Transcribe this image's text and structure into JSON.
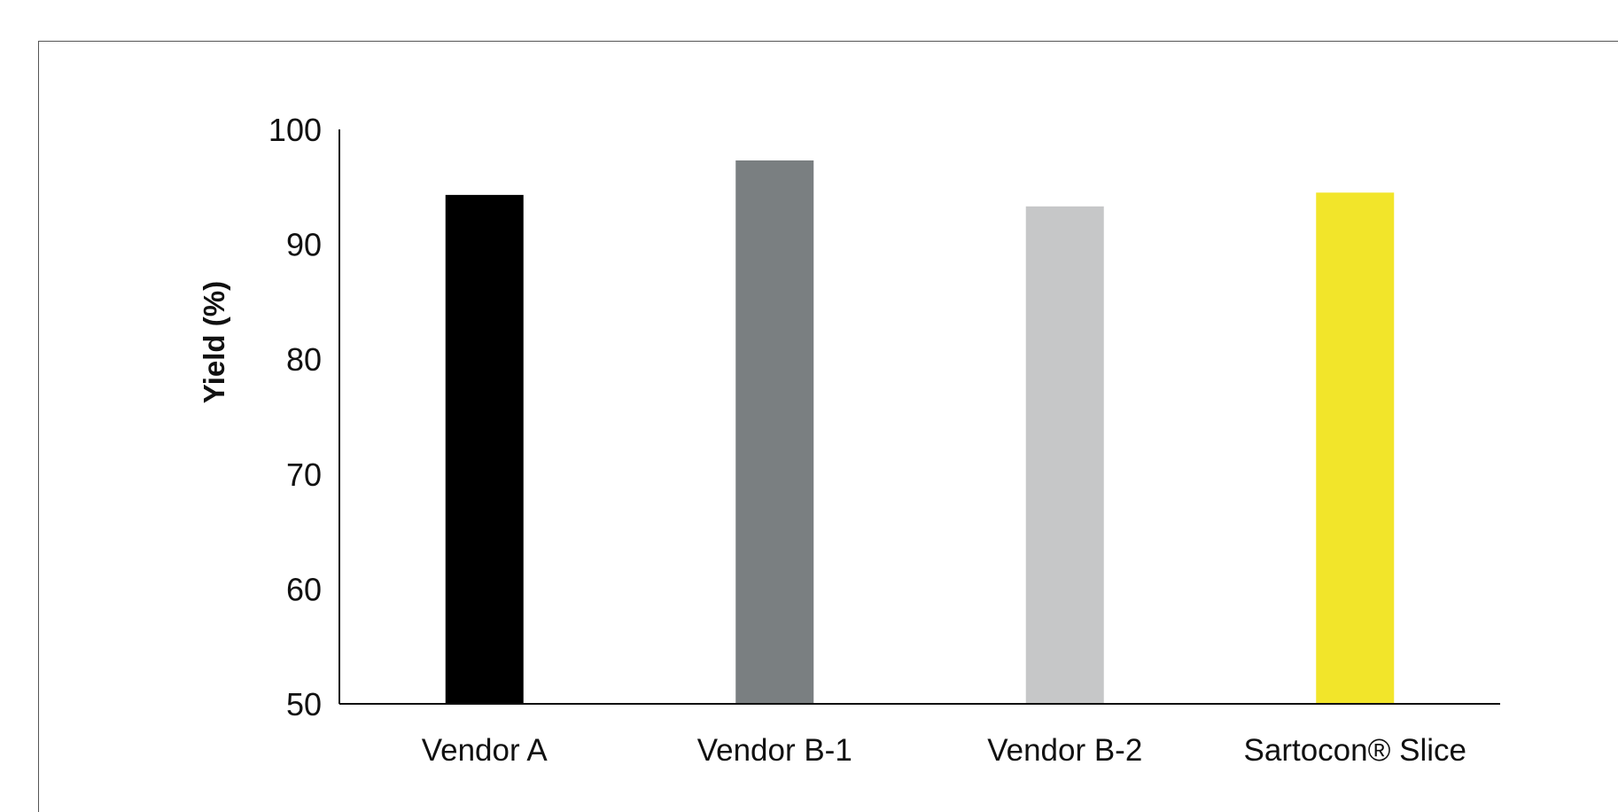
{
  "chart_data": {
    "type": "bar",
    "categories": [
      "Vendor A",
      "Vendor B-1",
      "Vendor B-2",
      "Sartocon® Slice"
    ],
    "values": [
      94.3,
      97.3,
      93.3,
      94.5
    ],
    "colors": [
      "#000000",
      "#7a7f81",
      "#c6c7c8",
      "#f2e52a"
    ],
    "title": "",
    "xlabel": "",
    "ylabel": "Yield (%)",
    "ylim": [
      50,
      100
    ],
    "yticks": [
      "50",
      "60",
      "70",
      "80",
      "90",
      "100"
    ],
    "grid": false,
    "legend": "none"
  }
}
